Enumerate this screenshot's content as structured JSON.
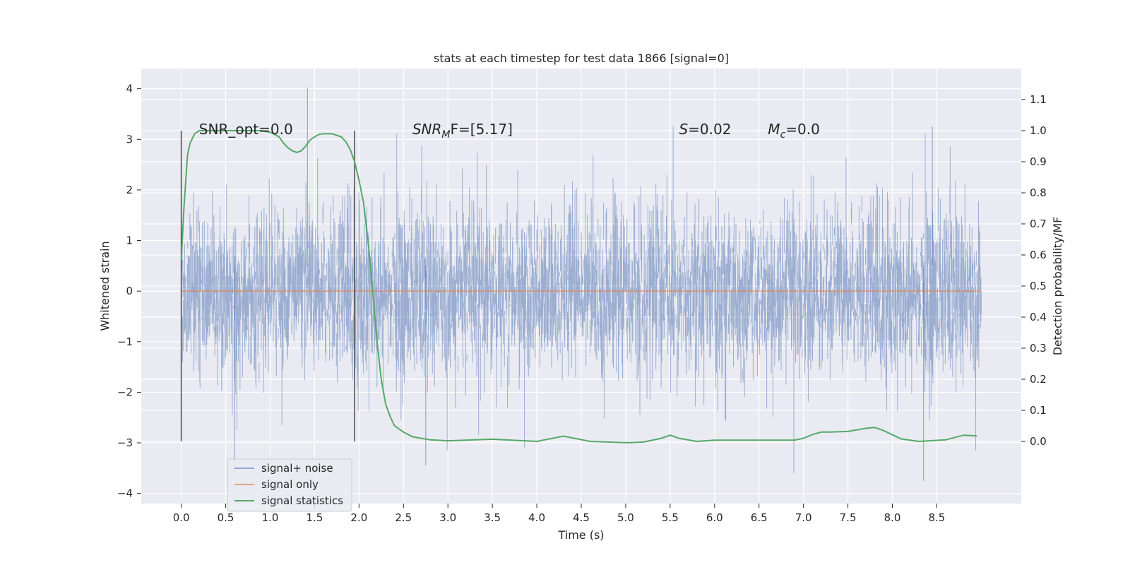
{
  "chart_data": {
    "type": "line",
    "title": "stats at each timestep for test data 1866 [signal=0]",
    "xlabel": "Time (s)",
    "ylabel": "Whitened strain",
    "ylabel_right": "Detection probability/MF",
    "xlim": [
      -0.45,
      9.45
    ],
    "ylim": [
      -4.2,
      4.4
    ],
    "ylim_right": [
      -0.2,
      1.2
    ],
    "x_ticks": [
      0.0,
      0.5,
      1.0,
      1.5,
      2.0,
      2.5,
      3.0,
      3.5,
      4.0,
      4.5,
      5.0,
      5.5,
      6.0,
      6.5,
      7.0,
      7.5,
      8.0,
      8.5
    ],
    "x_tick_labels": [
      "0.0",
      "0.5",
      "1.0",
      "1.5",
      "2.0",
      "2.5",
      "3.0",
      "3.5",
      "4.0",
      "4.5",
      "5.0",
      "5.5",
      "6.0",
      "6.5",
      "7.0",
      "7.5",
      "8.0",
      "8.5"
    ],
    "y_ticks": [
      4,
      3,
      2,
      1,
      0,
      -1,
      -2,
      -3,
      -4
    ],
    "y_tick_labels": [
      "4",
      "3",
      "2",
      "1",
      "0",
      "−1",
      "−2",
      "−3",
      "−4"
    ],
    "y_right_ticks": [
      1.1,
      1.0,
      0.9,
      0.8,
      0.7,
      0.6,
      0.5,
      0.4,
      0.3,
      0.2,
      0.1,
      0.0
    ],
    "y_right_tick_labels": [
      "1.1",
      "1.0",
      "0.9",
      "0.8",
      "0.7",
      "0.6",
      "0.5",
      "0.4",
      "0.3",
      "0.2",
      "0.1",
      "0.0"
    ],
    "grid": true,
    "vlines": [
      0.0,
      1.95
    ],
    "vline_range": [
      0.0,
      1.0
    ],
    "noise": {
      "name": "signal+ noise",
      "x_start": 0.0,
      "x_end": 9.0,
      "typical_range": [
        -2.0,
        2.0
      ],
      "extremes": [
        -3.75,
        4.02
      ],
      "color": "#4c72b0"
    },
    "signal_only": {
      "name": "signal only",
      "value": 0.0,
      "color": "#dd8452"
    },
    "statistics": {
      "name": "signal statistics",
      "color": "#55a868",
      "x": [
        0.0,
        0.03,
        0.07,
        0.1,
        0.15,
        0.2,
        0.3,
        0.5,
        0.7,
        0.9,
        1.0,
        1.1,
        1.15,
        1.2,
        1.25,
        1.3,
        1.35,
        1.4,
        1.45,
        1.5,
        1.55,
        1.6,
        1.7,
        1.8,
        1.85,
        1.9,
        1.95,
        2.0,
        2.05,
        2.1,
        2.15,
        2.2,
        2.25,
        2.3,
        2.35,
        2.4,
        2.5,
        2.6,
        2.8,
        3.0,
        3.5,
        4.0,
        4.3,
        4.6,
        5.0,
        5.2,
        5.4,
        5.5,
        5.6,
        5.8,
        6.0,
        6.5,
        6.9,
        7.0,
        7.1,
        7.2,
        7.3,
        7.5,
        7.7,
        7.8,
        7.9,
        8.1,
        8.3,
        8.6,
        8.8,
        8.95
      ],
      "y": [
        0.58,
        0.75,
        0.92,
        0.96,
        0.99,
        1.0,
        1.0,
        1.0,
        1.0,
        1.0,
        0.995,
        0.98,
        0.96,
        0.945,
        0.935,
        0.93,
        0.935,
        0.95,
        0.97,
        0.98,
        0.988,
        0.99,
        0.99,
        0.98,
        0.965,
        0.94,
        0.9,
        0.84,
        0.77,
        0.65,
        0.5,
        0.33,
        0.2,
        0.12,
        0.08,
        0.05,
        0.03,
        0.015,
        0.005,
        0.002,
        0.007,
        0.0,
        0.017,
        0.0,
        -0.004,
        -0.002,
        0.01,
        0.02,
        0.01,
        0.0,
        0.004,
        0.004,
        0.004,
        0.01,
        0.022,
        0.03,
        0.03,
        0.032,
        0.042,
        0.045,
        0.035,
        0.008,
        0.0,
        0.005,
        0.02,
        0.018
      ]
    },
    "annotations": [
      {
        "text": "SNR_opt=0.0",
        "x": 0.2,
        "y": 3.2
      },
      {
        "main": "SNR",
        "sub": "M",
        "rest": "F=[5.17]",
        "x": 2.6,
        "y": 3.2
      },
      {
        "main": "S",
        "sub": "",
        "rest": "=0.02",
        "x": 5.6,
        "y": 3.2
      },
      {
        "main": "M",
        "sub": "c",
        "rest": "=0.0",
        "x": 6.6,
        "y": 3.2
      }
    ],
    "legend": {
      "placement": "lower-left",
      "entries": [
        "signal+ noise",
        "signal only",
        "signal statistics"
      ]
    }
  }
}
